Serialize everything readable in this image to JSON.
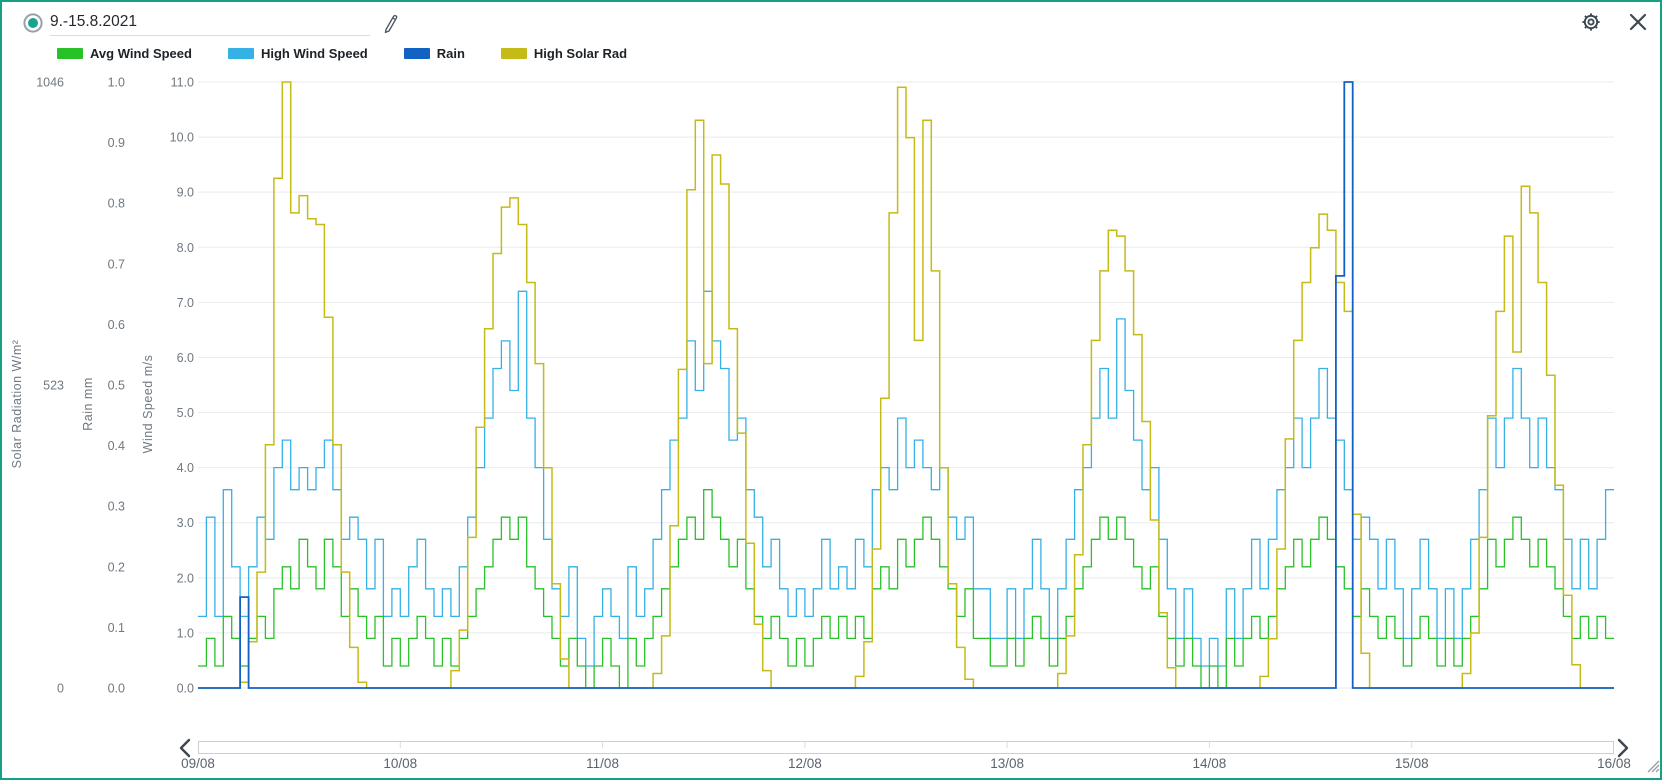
{
  "window": {
    "border_color": "#16a085",
    "background": "#ffffff"
  },
  "header": {
    "date_range": "9.-15.8.2021",
    "radio_selected": true,
    "radio_color": "#17a58f",
    "icons": [
      "radio-selected-icon",
      "pencil-icon",
      "gear-icon",
      "close-icon"
    ]
  },
  "legend": {
    "items": [
      {
        "label": "Avg Wind Speed",
        "color": "#28c128"
      },
      {
        "label": "High Wind Speed",
        "color": "#35b1e6"
      },
      {
        "label": "Rain",
        "color": "#1262c4"
      },
      {
        "label": "High Solar Rad",
        "color": "#c5bb16"
      }
    ]
  },
  "chart_data": {
    "type": "line",
    "step": true,
    "grid": "horizontal",
    "grid_color": "#e9ebee",
    "axis_text_color": "#6f7880",
    "x_labels": [
      "09/08",
      "10/08",
      "11/08",
      "12/08",
      "13/08",
      "14/08",
      "15/08",
      "16/08"
    ],
    "x_range_days": 7,
    "samples_per_day": 24,
    "axes": {
      "solar": {
        "title": "Solar Radiation W/m²",
        "max": 1046,
        "tick_values": [
          0,
          523,
          1046
        ],
        "tick_labels": [
          "0",
          "523",
          "1046"
        ]
      },
      "rain": {
        "title": "Rain mm",
        "max": 1.0,
        "tick_values": [
          0,
          0.1,
          0.2,
          0.3,
          0.4,
          0.5,
          0.6,
          0.7,
          0.8,
          0.9,
          1.0
        ],
        "tick_labels": [
          "0.0",
          "0.1",
          "0.2",
          "0.3",
          "0.4",
          "0.5",
          "0.6",
          "0.7",
          "0.8",
          "0.9",
          "1.0"
        ]
      },
      "wind": {
        "title": "Wind Speed m/s",
        "max": 11.0,
        "tick_values": [
          0,
          1,
          2,
          3,
          4,
          5,
          6,
          7,
          8,
          9,
          10,
          11
        ],
        "tick_labels": [
          "0.0",
          "1.0",
          "2.0",
          "3.0",
          "4.0",
          "5.0",
          "6.0",
          "7.0",
          "8.0",
          "9.0",
          "10.0",
          "11.0"
        ]
      }
    },
    "series": [
      {
        "name": "High Wind Speed",
        "axis": "wind",
        "color": "#35b1e6",
        "values_by_day": [
          [
            1.3,
            3.1,
            1.3,
            3.6,
            2.2,
            1.3,
            2.2,
            3.1,
            2.7,
            4.0,
            4.5,
            3.6,
            4.0,
            3.6,
            4.0,
            4.5,
            3.6,
            2.7,
            3.1,
            2.7,
            1.8,
            2.7,
            1.3,
            1.8
          ],
          [
            1.3,
            2.2,
            2.7,
            1.8,
            1.3,
            1.8,
            1.3,
            2.2,
            3.1,
            4.0,
            4.9,
            5.8,
            6.3,
            5.4,
            7.2,
            4.9,
            4.0,
            2.7,
            1.8,
            1.3,
            2.2,
            0.9,
            0.4,
            1.3
          ],
          [
            1.8,
            1.3,
            0.9,
            2.2,
            1.3,
            1.8,
            2.7,
            3.6,
            4.5,
            4.9,
            6.3,
            5.4,
            7.2,
            6.3,
            5.8,
            4.5,
            4.9,
            3.6,
            3.1,
            2.2,
            2.7,
            1.8,
            1.3,
            1.8
          ],
          [
            1.3,
            1.8,
            2.7,
            1.8,
            2.2,
            1.8,
            2.7,
            2.2,
            3.6,
            4.0,
            3.6,
            4.9,
            4.0,
            4.5,
            4.0,
            3.6,
            4.0,
            3.1,
            2.7,
            3.1,
            1.8,
            1.8,
            0.9,
            0.9
          ],
          [
            1.8,
            0.9,
            1.8,
            2.7,
            1.8,
            0.9,
            1.8,
            2.7,
            3.6,
            4.0,
            4.9,
            5.8,
            4.9,
            6.7,
            5.4,
            4.5,
            3.6,
            4.0,
            2.7,
            1.8,
            0.9,
            1.8,
            0.9,
            0.4
          ],
          [
            0.9,
            0.4,
            1.8,
            0.9,
            1.8,
            2.7,
            1.8,
            2.7,
            3.6,
            4.0,
            4.9,
            4.0,
            4.9,
            5.8,
            4.9,
            4.5,
            3.6,
            2.7,
            3.1,
            2.7,
            1.8,
            2.7,
            1.8,
            0.9
          ],
          [
            1.8,
            2.7,
            1.8,
            0.9,
            1.8,
            0.9,
            1.8,
            2.7,
            3.6,
            4.9,
            4.0,
            4.9,
            5.8,
            4.9,
            4.0,
            4.9,
            4.0,
            3.6,
            2.7,
            1.8,
            2.7,
            1.8,
            2.7,
            3.6
          ]
        ]
      },
      {
        "name": "Avg Wind Speed",
        "axis": "wind",
        "color": "#28c128",
        "values_by_day": [
          [
            0.4,
            0.9,
            0.4,
            1.3,
            0.9,
            0.4,
            0.9,
            1.3,
            0.9,
            1.8,
            2.2,
            1.8,
            2.7,
            2.2,
            1.8,
            2.7,
            2.2,
            1.3,
            1.8,
            1.3,
            0.9,
            1.3,
            0.4,
            0.9
          ],
          [
            0.4,
            0.9,
            1.3,
            0.9,
            0.4,
            0.9,
            0.4,
            0.9,
            1.3,
            1.8,
            2.2,
            2.7,
            3.1,
            2.7,
            3.1,
            2.2,
            1.8,
            1.3,
            0.9,
            0.4,
            0.9,
            0.4,
            0.0,
            0.4
          ],
          [
            0.9,
            0.4,
            0.0,
            0.9,
            0.4,
            0.9,
            1.3,
            1.8,
            2.2,
            2.7,
            3.1,
            2.7,
            3.6,
            3.1,
            2.7,
            2.2,
            2.7,
            1.8,
            1.3,
            0.9,
            1.3,
            0.9,
            0.4,
            0.9
          ],
          [
            0.4,
            0.9,
            1.3,
            0.9,
            1.3,
            0.9,
            1.3,
            0.9,
            1.8,
            2.2,
            1.8,
            2.7,
            2.2,
            2.7,
            3.1,
            2.7,
            2.2,
            1.8,
            1.3,
            1.8,
            0.9,
            0.9,
            0.4,
            0.4
          ],
          [
            0.9,
            0.4,
            0.9,
            1.3,
            0.9,
            0.4,
            0.9,
            1.3,
            1.8,
            2.2,
            2.7,
            3.1,
            2.7,
            3.1,
            2.7,
            2.2,
            1.8,
            2.2,
            1.3,
            0.9,
            0.4,
            0.9,
            0.4,
            0.0
          ],
          [
            0.4,
            0.0,
            0.9,
            0.4,
            0.9,
            1.3,
            0.9,
            1.3,
            1.8,
            2.2,
            2.7,
            2.2,
            2.7,
            3.1,
            2.7,
            2.2,
            1.8,
            1.3,
            1.8,
            1.3,
            0.9,
            1.3,
            0.9,
            0.4
          ],
          [
            0.9,
            1.3,
            0.9,
            0.4,
            0.9,
            0.4,
            0.9,
            1.3,
            1.8,
            2.7,
            2.2,
            2.7,
            3.1,
            2.7,
            2.2,
            2.7,
            2.2,
            1.8,
            1.3,
            0.9,
            1.3,
            0.9,
            1.3,
            0.9
          ]
        ]
      },
      {
        "name": "High Solar Rad",
        "axis": "solar",
        "color": "#c5bb16",
        "values_by_day": [
          [
            0,
            0,
            0,
            0,
            0,
            10,
            80,
            200,
            420,
            880,
            1046,
            820,
            850,
            810,
            800,
            640,
            420,
            200,
            70,
            10,
            0,
            0,
            0,
            0
          ],
          [
            0,
            0,
            0,
            0,
            0,
            0,
            30,
            100,
            260,
            450,
            620,
            750,
            830,
            846,
            800,
            700,
            560,
            380,
            180,
            50,
            0,
            0,
            0,
            0
          ],
          [
            0,
            0,
            0,
            0,
            0,
            0,
            25,
            90,
            280,
            550,
            860,
            980,
            560,
            920,
            870,
            620,
            440,
            250,
            110,
            30,
            0,
            0,
            0,
            0
          ],
          [
            0,
            0,
            0,
            0,
            0,
            0,
            20,
            80,
            240,
            500,
            820,
            1037,
            950,
            600,
            980,
            720,
            380,
            180,
            70,
            15,
            0,
            0,
            0,
            0
          ],
          [
            0,
            0,
            0,
            0,
            0,
            0,
            25,
            90,
            230,
            420,
            600,
            720,
            790,
            780,
            720,
            610,
            460,
            290,
            130,
            35,
            0,
            0,
            0,
            0
          ],
          [
            0,
            0,
            0,
            0,
            0,
            0,
            20,
            85,
            240,
            430,
            600,
            700,
            760,
            818,
            790,
            700,
            650,
            300,
            60,
            0,
            0,
            0,
            0,
            0
          ],
          [
            0,
            0,
            0,
            0,
            0,
            0,
            25,
            95,
            260,
            470,
            650,
            780,
            580,
            866,
            820,
            700,
            540,
            350,
            160,
            40,
            0,
            0,
            0,
            0
          ]
        ]
      },
      {
        "name": "Rain",
        "axis": "rain",
        "color": "#1262c4",
        "values_by_day": [
          [
            0,
            0,
            0,
            0,
            0,
            0.15,
            0,
            0,
            0,
            0,
            0,
            0,
            0,
            0,
            0,
            0,
            0,
            0,
            0,
            0,
            0,
            0,
            0,
            0
          ],
          [
            0,
            0,
            0,
            0,
            0,
            0,
            0,
            0,
            0,
            0,
            0,
            0,
            0,
            0,
            0,
            0,
            0,
            0,
            0,
            0,
            0,
            0,
            0,
            0
          ],
          [
            0,
            0,
            0,
            0,
            0,
            0,
            0,
            0,
            0,
            0,
            0,
            0,
            0,
            0,
            0,
            0,
            0,
            0,
            0,
            0,
            0,
            0,
            0,
            0
          ],
          [
            0,
            0,
            0,
            0,
            0,
            0,
            0,
            0,
            0,
            0,
            0,
            0,
            0,
            0,
            0,
            0,
            0,
            0,
            0,
            0,
            0,
            0,
            0,
            0
          ],
          [
            0,
            0,
            0,
            0,
            0,
            0,
            0,
            0,
            0,
            0,
            0,
            0,
            0,
            0,
            0,
            0,
            0,
            0,
            0,
            0,
            0,
            0,
            0,
            0
          ],
          [
            0,
            0,
            0,
            0,
            0,
            0,
            0,
            0,
            0,
            0,
            0,
            0,
            0,
            0,
            0,
            0.68,
            1.0,
            0,
            0,
            0,
            0,
            0,
            0,
            0
          ],
          [
            0,
            0,
            0,
            0,
            0,
            0,
            0,
            0,
            0,
            0,
            0,
            0,
            0,
            0,
            0,
            0,
            0,
            0,
            0,
            0,
            0,
            0,
            0,
            0
          ]
        ]
      }
    ]
  },
  "scrollbar": {
    "track_color": "#c6cfda",
    "chevron_color": "#3e4751",
    "left_chevron": "chevron-left-icon",
    "right_chevron": "chevron-right-icon"
  },
  "resize_handle": {
    "color": "#9aa1ab"
  }
}
